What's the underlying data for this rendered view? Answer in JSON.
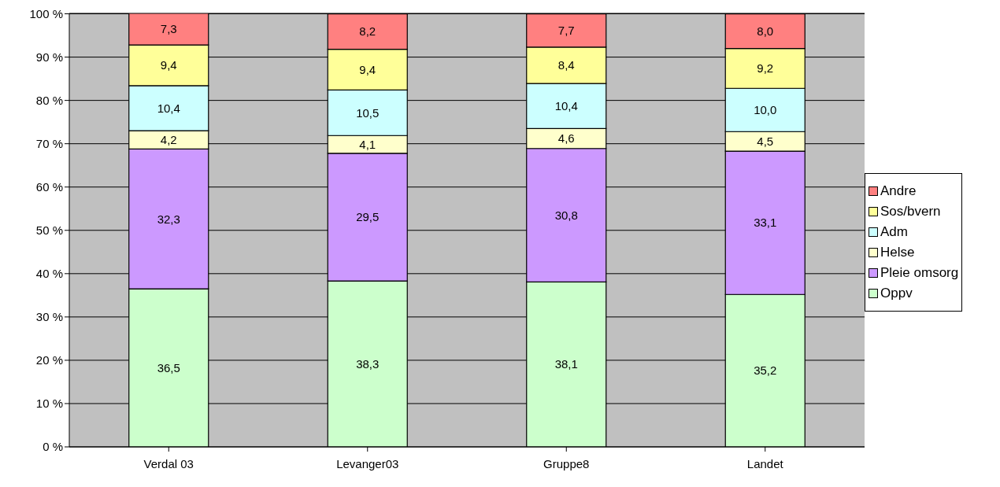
{
  "chart_data": {
    "type": "bar",
    "stacked": true,
    "categories": [
      "Verdal 03",
      "Levanger03",
      "Gruppe8",
      "Landet"
    ],
    "series": [
      {
        "name": "Oppv",
        "color": "#ccffcc",
        "values": [
          36.5,
          38.3,
          38.1,
          35.2
        ],
        "value_labels": [
          "36,5",
          "38,3",
          "38,1",
          "35,2"
        ]
      },
      {
        "name": "Pleie omsorg",
        "color": "#cc99ff",
        "values": [
          32.3,
          29.5,
          30.8,
          33.1
        ],
        "value_labels": [
          "32,3",
          "29,5",
          "30,8",
          "33,1"
        ]
      },
      {
        "name": "Helse",
        "color": "#ffffcc",
        "values": [
          4.2,
          4.1,
          4.6,
          4.5
        ],
        "value_labels": [
          "4,2",
          "4,1",
          "4,6",
          "4,5"
        ]
      },
      {
        "name": "Adm",
        "color": "#ccffff",
        "values": [
          10.4,
          10.5,
          10.4,
          10.0
        ],
        "value_labels": [
          "10,4",
          "10,5",
          "10,4",
          "10,0"
        ]
      },
      {
        "name": "Sos/bvern",
        "color": "#ffff99",
        "values": [
          9.4,
          9.4,
          8.4,
          9.2
        ],
        "value_labels": [
          "9,4",
          "9,4",
          "8,4",
          "9,2"
        ]
      },
      {
        "name": "Andre",
        "color": "#ff8080",
        "values": [
          7.3,
          8.2,
          7.7,
          8.0
        ],
        "value_labels": [
          "7,3",
          "8,2",
          "7,7",
          "8,0"
        ]
      }
    ],
    "ylim": [
      0,
      100.1
    ],
    "yticks": [
      {
        "value": 0,
        "label": "0 %"
      },
      {
        "value": 10,
        "label": "10 %"
      },
      {
        "value": 20,
        "label": "20 %"
      },
      {
        "value": 30,
        "label": "30 %"
      },
      {
        "value": 40,
        "label": "40 %"
      },
      {
        "value": 50,
        "label": "50 %"
      },
      {
        "value": 60,
        "label": "60 %"
      },
      {
        "value": 70,
        "label": "70 %"
      },
      {
        "value": 80,
        "label": "80 %"
      },
      {
        "value": 90,
        "label": "90 %"
      },
      {
        "value": 100,
        "label": "100 %"
      }
    ],
    "grid": "y",
    "legend": "right"
  }
}
